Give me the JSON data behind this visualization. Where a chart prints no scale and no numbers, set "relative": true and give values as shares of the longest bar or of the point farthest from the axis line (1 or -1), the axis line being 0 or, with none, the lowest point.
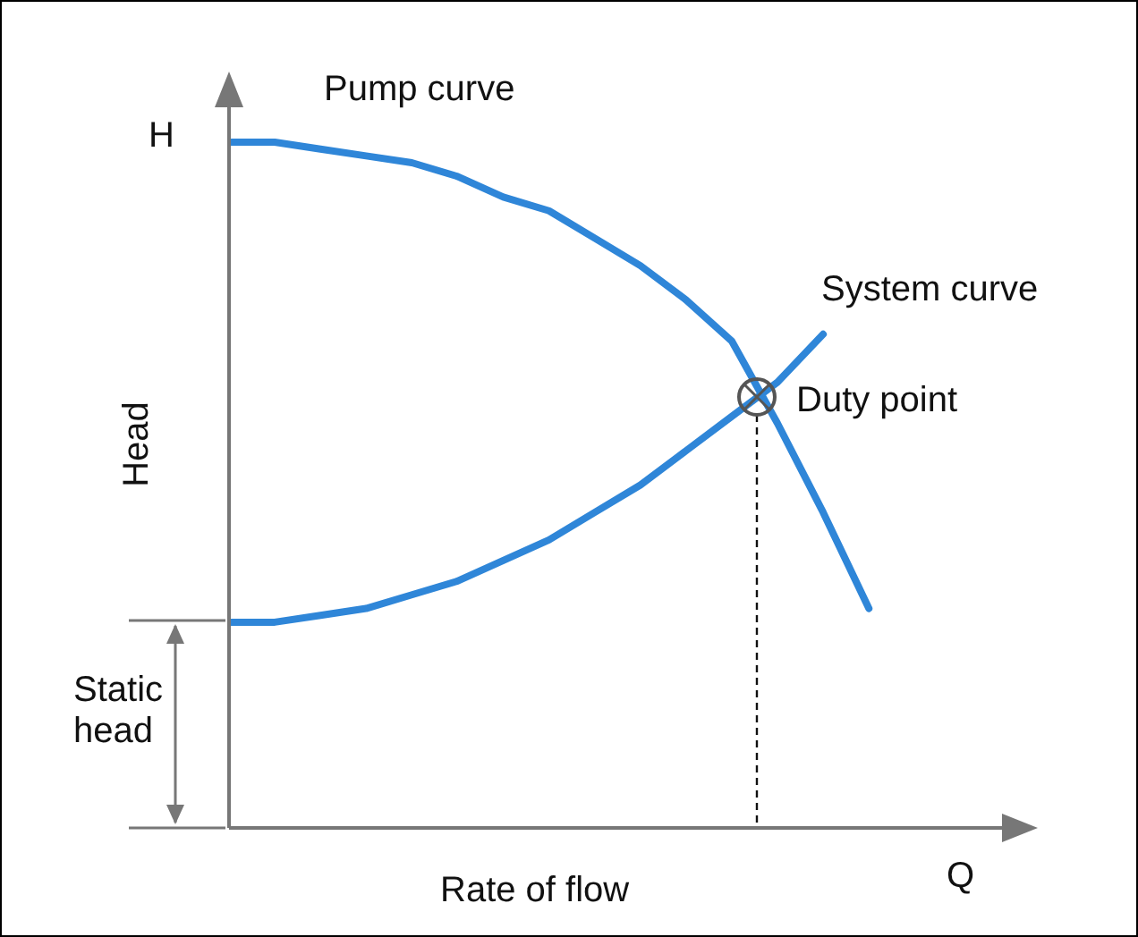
{
  "chart_data": {
    "type": "line",
    "relative": true,
    "xlabel": "Rate of flow",
    "ylabel": "Head",
    "categories": [
      null,
      null,
      null,
      null,
      null,
      null,
      null,
      null,
      null,
      null,
      null,
      null,
      null,
      null,
      null
    ],
    "series": [
      {
        "name": "Pump curve",
        "color": "#2f86d8",
        "values": [
          1,
          1,
          0.99,
          0.98,
          0.97,
          0.95,
          0.92,
          0.9,
          0.86,
          0.82,
          0.77,
          0.71,
          0.59,
          0.46,
          0.32
        ]
      },
      {
        "name": "System curve",
        "color": "#2f86d8",
        "values": [
          0.3,
          0.3,
          0.31,
          0.32,
          0.34,
          0.36,
          0.39,
          0.42,
          0.46,
          0.5,
          0.55,
          0.6,
          0.65,
          0.72,
          null
        ]
      }
    ],
    "annotations": [
      "H",
      "Q",
      "Duty point",
      "Static head"
    ],
    "marker": "none",
    "line_style": "solid",
    "grid": false,
    "legend": false
  }
}
